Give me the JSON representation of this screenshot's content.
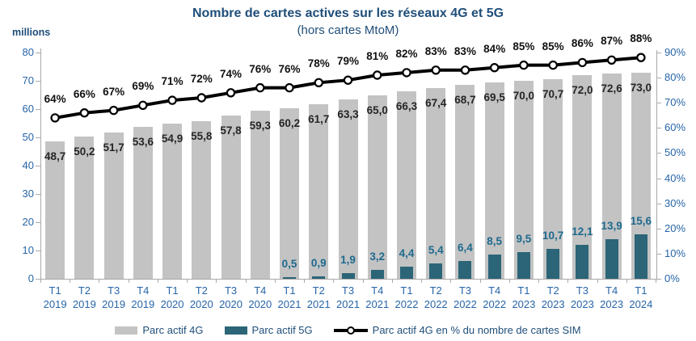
{
  "header": {
    "title": "Nombre de cartes actives sur les réseaux 4G et 5G",
    "subtitle": "(hors cartes MtoM)",
    "unit_label": "millions"
  },
  "legend": {
    "parc_4g": "Parc actif 4G",
    "parc_5g": "Parc actif 5G",
    "pct_line": "Parc actif 4G en % du nombre de cartes SIM"
  },
  "colors": {
    "bar_4g": "#C3C3C3",
    "bar_5g": "#2B6577",
    "line": "#000000",
    "marker_fill": "#FFFFFF",
    "title_text": "#1F4E79",
    "axis_text": "#2765A8",
    "label_4g": "#262626",
    "label_5g": "#1E6A8E",
    "axis_line": "#A9A9A9"
  },
  "chart_data": {
    "type": "bar",
    "subtype": "bar+line combo",
    "title": "Nombre de cartes actives sur les réseaux 4G et 5G",
    "subtitle": "(hors cartes MtoM)",
    "grid": false,
    "legend_position": "bottom",
    "categories": [
      {
        "q": "T1",
        "y": "2019"
      },
      {
        "q": "T2",
        "y": "2019"
      },
      {
        "q": "T3",
        "y": "2019"
      },
      {
        "q": "T4",
        "y": "2019"
      },
      {
        "q": "T1",
        "y": "2020"
      },
      {
        "q": "T2",
        "y": "2020"
      },
      {
        "q": "T3",
        "y": "2020"
      },
      {
        "q": "T4",
        "y": "2020"
      },
      {
        "q": "T1",
        "y": "2021"
      },
      {
        "q": "T2",
        "y": "2021"
      },
      {
        "q": "T3",
        "y": "2021"
      },
      {
        "q": "T4",
        "y": "2021"
      },
      {
        "q": "T1",
        "y": "2022"
      },
      {
        "q": "T2",
        "y": "2022"
      },
      {
        "q": "T3",
        "y": "2022"
      },
      {
        "q": "T4",
        "y": "2022"
      },
      {
        "q": "T1",
        "y": "2023"
      },
      {
        "q": "T2",
        "y": "2023"
      },
      {
        "q": "T3",
        "y": "2023"
      },
      {
        "q": "T4",
        "y": "2023"
      },
      {
        "q": "T1",
        "y": "2024"
      }
    ],
    "series": [
      {
        "name": "Parc actif 4G",
        "type": "bar",
        "axis": "left",
        "values": [
          48.7,
          50.2,
          51.7,
          53.6,
          54.9,
          55.8,
          57.8,
          59.3,
          60.2,
          61.7,
          63.3,
          65.0,
          66.3,
          67.4,
          68.7,
          69.5,
          70.0,
          70.7,
          72.0,
          72.6,
          73.0
        ],
        "labels": [
          "48,7",
          "50,2",
          "51,7",
          "53,6",
          "54,9",
          "55,8",
          "57,8",
          "59,3",
          "60,2",
          "61,7",
          "63,3",
          "65,0",
          "66,3",
          "67,4",
          "68,7",
          "69,5",
          "70,0",
          "70,7",
          "72,0",
          "72,6",
          "73,0"
        ]
      },
      {
        "name": "Parc actif 5G",
        "type": "bar",
        "axis": "left",
        "values": [
          null,
          null,
          null,
          null,
          null,
          null,
          null,
          null,
          0.5,
          0.9,
          1.9,
          3.2,
          4.4,
          5.4,
          6.4,
          8.5,
          9.5,
          10.7,
          12.1,
          13.9,
          15.6
        ],
        "labels": [
          null,
          null,
          null,
          null,
          null,
          null,
          null,
          null,
          "0,5",
          "0,9",
          "1,9",
          "3,2",
          "4,4",
          "5,4",
          "6,4",
          "8,5",
          "9,5",
          "10,7",
          "12,1",
          "13,9",
          "15,6"
        ]
      },
      {
        "name": "Parc actif 4G en % du nombre de cartes SIM",
        "type": "line",
        "axis": "right",
        "values": [
          64,
          66,
          67,
          69,
          71,
          72,
          74,
          76,
          76,
          78,
          79,
          81,
          82,
          83,
          83,
          84,
          85,
          85,
          86,
          87,
          88
        ],
        "labels": [
          "64%",
          "66%",
          "67%",
          "69%",
          "71%",
          "72%",
          "74%",
          "76%",
          "76%",
          "78%",
          "79%",
          "81%",
          "82%",
          "83%",
          "83%",
          "84%",
          "85%",
          "85%",
          "86%",
          "87%",
          "88%"
        ]
      }
    ],
    "left_axis": {
      "label": "millions",
      "min": 0,
      "max": 80,
      "step": 10,
      "ticks": [
        "0",
        "10",
        "20",
        "30",
        "40",
        "50",
        "60",
        "70",
        "80"
      ]
    },
    "right_axis": {
      "min": 0,
      "max": 90,
      "step": 10,
      "ticks": [
        "0%",
        "10%",
        "20%",
        "30%",
        "40%",
        "50%",
        "60%",
        "70%",
        "80%",
        "90%"
      ]
    }
  }
}
